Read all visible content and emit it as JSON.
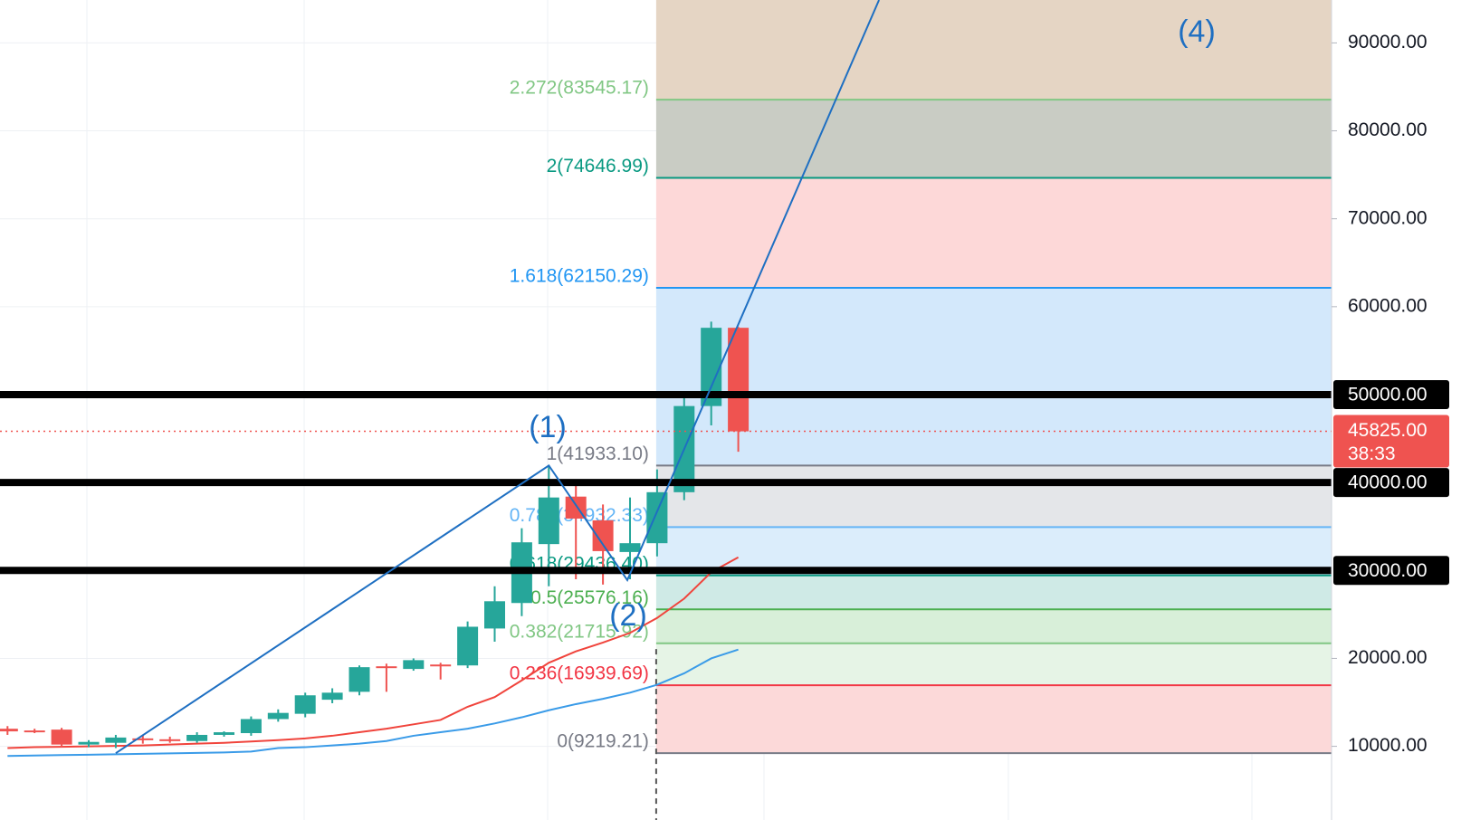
{
  "chart_data": {
    "type": "candlestick",
    "up_color": "#26a69a",
    "down_color": "#ef5350",
    "open": [
      12000,
      11800,
      11900,
      10200,
      10400,
      10900,
      10800,
      10600,
      11300,
      11500,
      13100,
      13700,
      15300,
      16200,
      19100,
      18800,
      19300,
      19200,
      23400,
      26300,
      33000,
      38400,
      35700,
      32100,
      33100,
      38900,
      48700,
      57600
    ],
    "high": [
      12300,
      12000,
      12100,
      10700,
      11300,
      11300,
      11100,
      11600,
      11700,
      13400,
      14200,
      16100,
      16600,
      19200,
      19400,
      20000,
      19500,
      24200,
      28200,
      34800,
      41900,
      40100,
      37500,
      38300,
      41500,
      50000,
      58300,
      57700
    ],
    "low": [
      11300,
      11500,
      9900,
      9900,
      9800,
      10300,
      10400,
      10400,
      11100,
      11200,
      12800,
      13300,
      14900,
      15800,
      16200,
      18600,
      17600,
      18900,
      21900,
      24800,
      28200,
      29000,
      28400,
      29000,
      31600,
      38000,
      46500,
      43500
    ],
    "close": [
      11700,
      11600,
      10200,
      10500,
      11000,
      10700,
      10600,
      11300,
      11600,
      13100,
      13800,
      15800,
      16100,
      19000,
      19000,
      19800,
      19200,
      23600,
      26500,
      33200,
      38300,
      35900,
      32200,
      33100,
      38900,
      48700,
      57600,
      45825
    ],
    "ylim": [
      1620,
      94880
    ],
    "yticks": [
      {
        "value": 10000,
        "label": "10000.00"
      },
      {
        "value": 20000,
        "label": "20000.00"
      },
      {
        "value": 60000,
        "label": "60000.00"
      },
      {
        "value": 70000,
        "label": "70000.00"
      },
      {
        "value": 80000,
        "label": "80000.00"
      },
      {
        "value": 90000,
        "label": "90000.00"
      }
    ],
    "grid": true,
    "ma": [
      {
        "color": "#f0443c",
        "values": [
          9800,
          9900,
          9950,
          10000,
          10050,
          10100,
          10200,
          10300,
          10400,
          10550,
          10700,
          10900,
          11200,
          11600,
          12000,
          12500,
          13000,
          14500,
          15600,
          17500,
          19500,
          20800,
          21800,
          22900,
          24600,
          26800,
          29800,
          31500
        ]
      },
      {
        "color": "#3a9be8",
        "values": [
          8900,
          8950,
          9000,
          9050,
          9100,
          9150,
          9200,
          9250,
          9300,
          9400,
          9800,
          9900,
          10100,
          10300,
          10600,
          11200,
          11600,
          12000,
          12600,
          13300,
          14100,
          14800,
          15400,
          16100,
          17000,
          18300,
          20000,
          21000
        ]
      }
    ],
    "fib": {
      "levels": [
        {
          "value": 9219.21,
          "label": "0(9219.21)",
          "color": "#787b86",
          "fill": "#fcd9d9"
        },
        {
          "value": 16939.69,
          "label": "0.236(16939.69)",
          "color": "#f23645",
          "fill": "#e6f4e6"
        },
        {
          "value": 21715.92,
          "label": "0.382(21715.92)",
          "color": "#81c784",
          "fill": "#d8efd9"
        },
        {
          "value": 25576.16,
          "label": "0.5(25576.16)",
          "color": "#4caf50",
          "fill": "#cfeae6"
        },
        {
          "value": 29436.4,
          "label": "0.618(29436.40)",
          "color": "#089981",
          "fill": "#dbedfb"
        },
        {
          "value": 34932.33,
          "label": "0.786(34932.33)",
          "color": "#64b5f6",
          "fill": "#e4e6e9"
        },
        {
          "value": 41933.1,
          "label": "1(41933.10)",
          "color": "#787b86",
          "fill": "#d3e8fb"
        },
        {
          "value": 62150.29,
          "label": "1.618(62150.29)",
          "color": "#2196f3",
          "fill": "#fdd8d8"
        },
        {
          "value": 74646.99,
          "label": "2(74646.99)",
          "color": "#089981",
          "fill": "#c9ccc4"
        },
        {
          "value": 83545.17,
          "label": "2.272(83545.17)",
          "color": "#81c784",
          "fill": "#e5d5c4"
        }
      ]
    },
    "hlines": [
      {
        "value": 50000,
        "label": "50000.00"
      },
      {
        "value": 40000,
        "label": "40000.00"
      },
      {
        "value": 30000,
        "label": "30000.00"
      }
    ],
    "last_price": {
      "value": 45825,
      "label": "45825.00",
      "countdown": "38:33",
      "color": "#ef5350"
    },
    "wave": {
      "color": "#1e6fc2",
      "x": [
        4,
        20,
        22.9,
        32.2
      ],
      "values": [
        9219.21,
        41933.1,
        28900,
        94880
      ],
      "labels": [
        "(1)",
        "(2)",
        "(4)"
      ]
    }
  }
}
